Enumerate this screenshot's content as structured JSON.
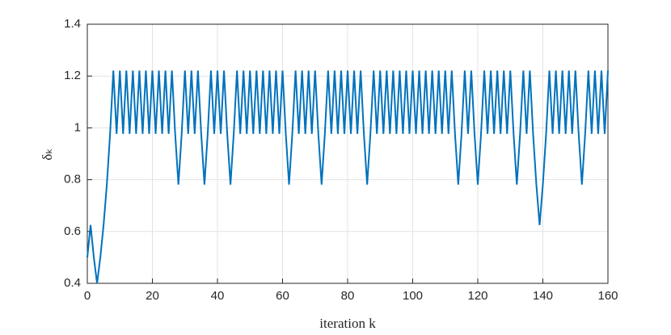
{
  "chart_data": {
    "type": "line",
    "xlabel": "iteration k",
    "ylabel": "δₖ",
    "x": [
      0,
      1,
      2,
      3,
      4,
      5,
      6,
      7,
      8,
      9,
      10,
      11,
      12,
      13,
      14,
      15,
      16,
      17,
      18,
      19,
      20,
      21,
      22,
      23,
      24,
      25,
      26,
      27,
      28,
      29,
      30,
      31,
      32,
      33,
      34,
      35,
      36,
      37,
      38,
      39,
      40,
      41,
      42,
      43,
      44,
      45,
      46,
      47,
      48,
      49,
      50,
      51,
      52,
      53,
      54,
      55,
      56,
      57,
      58,
      59,
      60,
      61,
      62,
      63,
      64,
      65,
      66,
      67,
      68,
      69,
      70,
      71,
      72,
      73,
      74,
      75,
      76,
      77,
      78,
      79,
      80,
      81,
      82,
      83,
      84,
      85,
      86,
      87,
      88,
      89,
      90,
      91,
      92,
      93,
      94,
      95,
      96,
      97,
      98,
      99,
      100,
      101,
      102,
      103,
      104,
      105,
      106,
      107,
      108,
      109,
      110,
      111,
      112,
      113,
      114,
      115,
      116,
      117,
      118,
      119,
      120,
      121,
      122,
      123,
      124,
      125,
      126,
      127,
      128,
      129,
      130,
      131,
      132,
      133,
      134,
      135,
      136,
      137,
      138,
      139,
      140,
      141,
      142,
      143,
      144,
      145,
      146,
      147,
      148,
      149,
      150,
      151,
      152,
      153,
      154,
      155,
      156,
      157,
      158,
      159,
      160
    ],
    "series": [
      {
        "name": "delta",
        "color": "#0072bd",
        "values": [
          0.5,
          0.625,
          0.5,
          0.4,
          0.5,
          0.625,
          0.781,
          0.977,
          1.221,
          0.977,
          1.221,
          0.977,
          1.221,
          0.977,
          1.221,
          0.977,
          1.221,
          0.977,
          1.221,
          0.977,
          1.221,
          0.977,
          1.221,
          0.977,
          1.221,
          0.977,
          1.221,
          0.977,
          0.781,
          0.977,
          1.221,
          0.977,
          1.221,
          0.977,
          1.221,
          0.977,
          0.781,
          0.977,
          1.221,
          0.977,
          1.221,
          0.977,
          1.221,
          0.977,
          0.781,
          0.977,
          1.221,
          0.977,
          1.221,
          0.977,
          1.221,
          0.977,
          1.221,
          0.977,
          1.221,
          0.977,
          1.221,
          0.977,
          1.221,
          0.977,
          1.221,
          0.977,
          0.781,
          0.977,
          1.221,
          0.977,
          1.221,
          0.977,
          1.221,
          0.977,
          1.221,
          0.977,
          0.781,
          0.977,
          1.221,
          0.977,
          1.221,
          0.977,
          1.221,
          0.977,
          1.221,
          0.977,
          1.221,
          0.977,
          1.221,
          0.977,
          0.781,
          0.977,
          1.221,
          0.977,
          1.221,
          0.977,
          1.221,
          0.977,
          1.221,
          0.977,
          1.221,
          0.977,
          1.221,
          0.977,
          1.221,
          0.977,
          1.221,
          0.977,
          1.221,
          0.977,
          1.221,
          0.977,
          1.221,
          0.977,
          1.221,
          0.977,
          1.221,
          0.977,
          0.781,
          0.977,
          1.221,
          0.977,
          1.221,
          0.977,
          0.781,
          0.977,
          1.221,
          0.977,
          1.221,
          0.977,
          1.221,
          0.977,
          1.221,
          0.977,
          1.221,
          0.977,
          0.781,
          0.977,
          1.221,
          0.977,
          1.221,
          0.977,
          0.781,
          0.625,
          0.781,
          0.977,
          1.221,
          0.977,
          1.221,
          0.977,
          1.221,
          0.977,
          1.221,
          0.977,
          1.221,
          0.977,
          0.781,
          0.977,
          1.221,
          0.977,
          1.221,
          0.977,
          1.221,
          0.977,
          1.221
        ]
      }
    ],
    "xlim": [
      0,
      160
    ],
    "xticks": [
      0,
      20,
      40,
      60,
      80,
      100,
      120,
      140,
      160
    ],
    "ylim": [
      0.4,
      1.4
    ],
    "yticks": [
      0.4,
      0.6,
      0.8,
      1,
      1.2,
      1.4
    ],
    "grid": true
  }
}
